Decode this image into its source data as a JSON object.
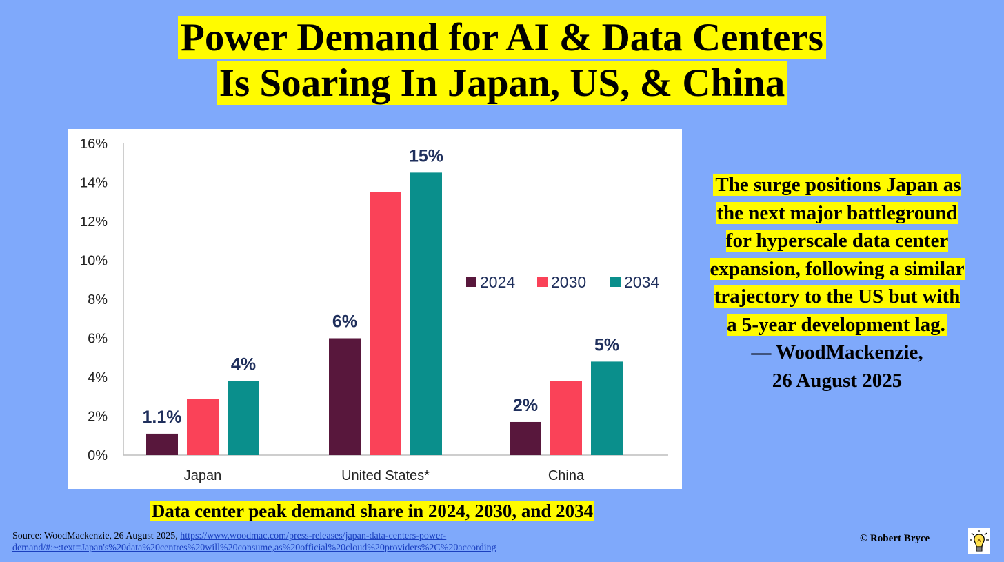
{
  "title": {
    "line1": "Power Demand for AI & Data Centers",
    "line2": "Is Soaring In Japan, US, & China"
  },
  "caption": "Data center peak demand share in 2024, 2030, and 2034",
  "quote": {
    "text": "The surge positions Japan as the next major battleground for hyperscale data center expansion, following a similar trajectory to the US but with a 5-year development lag.",
    "attribution_line1": "— WoodMackenzie,",
    "attribution_line2": "26 August 2025"
  },
  "source": {
    "prefix": "Source: WoodMackenzie, 26 August 2025, ",
    "link": "https://www.woodmac.com/press-releases/japan-data-centers-power-demand/#:~:text=Japan's%20data%20centres%20will%20consume,as%20official%20cloud%20providers%2C%20according"
  },
  "copyright": "© Robert Bryce",
  "icons": {
    "logo": "lightbulb-icon"
  },
  "colors": {
    "background": "#7fa9fb",
    "highlight": "#fffb00",
    "series_2024": "#58173c",
    "series_2030": "#fa4258",
    "series_2034": "#0a8f8c",
    "label": "#1f2f5c"
  },
  "chart_data": {
    "type": "bar",
    "title": "",
    "xlabel": "",
    "ylabel": "",
    "categories": [
      "Japan",
      "United States*",
      "China"
    ],
    "series": [
      {
        "name": "2024",
        "color": "#58173c",
        "values": [
          1.1,
          6.0,
          1.7
        ]
      },
      {
        "name": "2030",
        "color": "#fa4258",
        "values": [
          2.9,
          13.5,
          3.8
        ]
      },
      {
        "name": "2034",
        "color": "#0a8f8c",
        "values": [
          3.8,
          14.5,
          4.8
        ]
      }
    ],
    "data_labels": [
      {
        "category": "Japan",
        "series": "2024",
        "text": "1.1%"
      },
      {
        "category": "Japan",
        "series": "2034",
        "text": "4%"
      },
      {
        "category": "United States*",
        "series": "2024",
        "text": "6%"
      },
      {
        "category": "United States*",
        "series": "2034",
        "text": "15%"
      },
      {
        "category": "China",
        "series": "2024",
        "text": "2%"
      },
      {
        "category": "China",
        "series": "2034",
        "text": "5%"
      }
    ],
    "yticks": [
      "0%",
      "2%",
      "4%",
      "6%",
      "8%",
      "10%",
      "12%",
      "14%",
      "16%"
    ],
    "ylim": [
      0,
      16
    ],
    "grid": false,
    "legend": "right"
  }
}
